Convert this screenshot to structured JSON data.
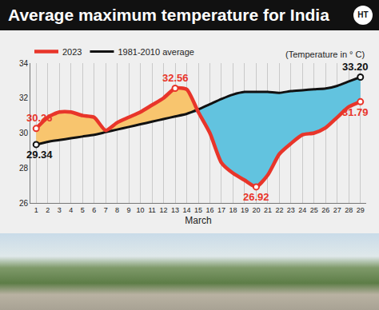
{
  "chart_data": {
    "type": "line",
    "title": "Average maximum temperature for India",
    "logo": "HT",
    "subtitle": "(Temperature in ° C)",
    "x_label": "March",
    "x": [
      1,
      2,
      3,
      4,
      5,
      6,
      7,
      8,
      9,
      10,
      11,
      12,
      13,
      14,
      15,
      16,
      17,
      18,
      19,
      20,
      21,
      22,
      23,
      24,
      25,
      26,
      27,
      28,
      29
    ],
    "series": [
      {
        "name": "1981-2010 average",
        "color": "#111111",
        "values": [
          29.34,
          29.5,
          29.6,
          29.7,
          29.8,
          29.9,
          30.05,
          30.2,
          30.35,
          30.5,
          30.65,
          30.8,
          30.95,
          31.1,
          31.35,
          31.65,
          31.95,
          32.2,
          32.35,
          32.35,
          32.35,
          32.3,
          32.4,
          32.45,
          32.5,
          32.55,
          32.7,
          32.95,
          33.2
        ]
      },
      {
        "name": "2023",
        "color": "#e8352a",
        "values": [
          30.26,
          30.9,
          31.2,
          31.2,
          31.0,
          30.9,
          30.15,
          30.6,
          30.9,
          31.2,
          31.6,
          32.0,
          32.56,
          32.5,
          31.2,
          30.0,
          28.3,
          27.7,
          27.3,
          26.92,
          27.6,
          28.8,
          29.4,
          29.9,
          30.0,
          30.3,
          30.9,
          31.5,
          31.79
        ]
      }
    ],
    "annotations": [
      {
        "text": "30.26",
        "x": 1,
        "y": 30.26,
        "series": "2023"
      },
      {
        "text": "29.34",
        "x": 1,
        "y": 29.34,
        "series": "1981-2010 average"
      },
      {
        "text": "32.56",
        "x": 13,
        "y": 32.56,
        "series": "2023"
      },
      {
        "text": "26.92",
        "x": 20,
        "y": 26.92,
        "series": "2023"
      },
      {
        "text": "33.20",
        "x": 29,
        "y": 33.2,
        "series": "1981-2010 average"
      },
      {
        "text": "31.79",
        "x": 29,
        "y": 31.79,
        "series": "2023"
      }
    ],
    "xlim": [
      0.5,
      29.5
    ],
    "xticks": [
      1,
      2,
      3,
      4,
      5,
      6,
      7,
      8,
      9,
      10,
      11,
      12,
      13,
      14,
      15,
      16,
      17,
      18,
      19,
      20,
      21,
      22,
      23,
      24,
      25,
      26,
      27,
      28,
      29
    ],
    "ylim": [
      26,
      34
    ],
    "yticks": [
      26,
      28,
      30,
      32,
      34
    ],
    "grid": true,
    "legend": "top-left"
  }
}
